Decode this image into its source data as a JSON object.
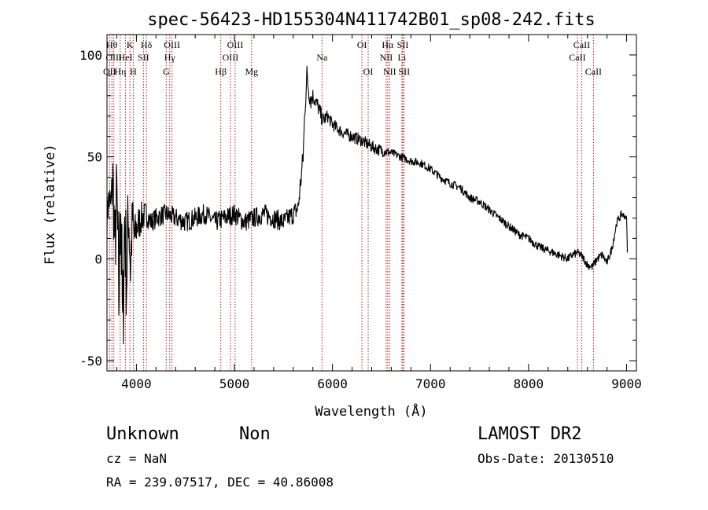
{
  "chart_data": {
    "type": "line",
    "title": "spec-56423-HD155304N411742B01_sp08-242.fits",
    "xlabel": "Wavelength (Å)",
    "ylabel": "Flux (relative)",
    "xlim": [
      3700,
      9100
    ],
    "ylim": [
      -55,
      110
    ],
    "xticks": [
      4000,
      5000,
      6000,
      7000,
      8000,
      9000
    ],
    "yticks": [
      -50,
      0,
      50,
      100
    ],
    "grid": false,
    "line_color": "#000000",
    "marker_color": "#b22222",
    "anchors": {
      "x": [
        3700,
        3720,
        3740,
        3760,
        3780,
        3800,
        3820,
        3840,
        3860,
        3880,
        3900,
        3920,
        3940,
        3960,
        3980,
        4000,
        4050,
        4100,
        4150,
        4200,
        4300,
        4400,
        4500,
        4600,
        4700,
        4800,
        4900,
        5000,
        5100,
        5200,
        5300,
        5400,
        5500,
        5600,
        5650,
        5700,
        5720,
        5740,
        5760,
        5780,
        5800,
        5850,
        5900,
        5950,
        6000,
        6100,
        6200,
        6300,
        6400,
        6500,
        6600,
        6700,
        6800,
        6900,
        7000,
        7100,
        7200,
        7300,
        7400,
        7500,
        7600,
        7700,
        7800,
        7900,
        8000,
        8100,
        8200,
        8300,
        8400,
        8450,
        8500,
        8550,
        8600,
        8650,
        8700,
        8750,
        8800,
        8850,
        8900,
        8950,
        9000,
        9010
      ],
      "y": [
        20,
        30,
        25,
        40,
        5,
        30,
        -20,
        35,
        -40,
        20,
        -10,
        25,
        -5,
        20,
        10,
        15,
        20,
        22,
        18,
        20,
        22,
        20,
        18,
        20,
        22,
        18,
        20,
        22,
        18,
        20,
        22,
        20,
        18,
        22,
        25,
        50,
        75,
        90,
        82,
        78,
        80,
        75,
        68,
        70,
        66,
        62,
        60,
        58,
        55,
        53,
        52,
        50,
        48,
        47,
        44,
        40,
        37,
        35,
        30,
        28,
        24,
        20,
        16,
        12,
        10,
        6,
        4,
        2,
        0,
        2,
        3,
        1,
        -3,
        -4,
        0,
        2,
        -2,
        5,
        18,
        22,
        20,
        0
      ],
      "noise_amplitude": [
        8,
        10,
        12,
        16,
        22,
        26,
        30,
        32,
        30,
        28,
        26,
        22,
        18,
        14,
        12,
        10,
        8,
        6,
        5,
        5,
        5,
        5,
        5,
        5,
        5,
        5,
        5,
        5,
        5,
        5,
        5,
        5,
        5,
        5,
        5,
        6,
        6,
        6,
        5,
        5,
        4,
        4,
        4,
        3,
        3,
        3,
        3,
        3,
        3,
        3,
        2,
        2,
        2,
        2,
        2,
        2,
        2,
        2,
        2,
        2,
        2,
        2,
        2,
        2,
        2,
        2,
        2,
        2,
        2,
        2,
        2,
        2,
        2,
        2,
        2,
        2,
        2,
        2,
        2,
        2,
        1,
        1
      ]
    },
    "lines": [
      {
        "label": "OII",
        "x": 3727,
        "row": 3
      },
      {
        "label": "Hθ",
        "x": 3750,
        "row": 1
      },
      {
        "label": "OIII",
        "x": 3770,
        "row": 2
      },
      {
        "label": "Hη",
        "x": 3835,
        "row": 3
      },
      {
        "label": "HeI",
        "x": 3889,
        "row": 2
      },
      {
        "label": "K",
        "x": 3934,
        "row": 1
      },
      {
        "label": "H",
        "x": 3968,
        "row": 3
      },
      {
        "label": "SII",
        "x": 4072,
        "row": 2
      },
      {
        "label": "Hδ",
        "x": 4102,
        "row": 1
      },
      {
        "label": "G",
        "x": 4304,
        "row": 3
      },
      {
        "label": "Hγ",
        "x": 4340,
        "row": 2
      },
      {
        "label": "OIII",
        "x": 4363,
        "row": 1
      },
      {
        "label": "Hβ",
        "x": 4861,
        "row": 3
      },
      {
        "label": "OIII",
        "x": 4959,
        "row": 2
      },
      {
        "label": "OIII",
        "x": 5007,
        "row": 1
      },
      {
        "label": "Mg",
        "x": 5175,
        "row": 3
      },
      {
        "label": "Na",
        "x": 5893,
        "row": 2
      },
      {
        "label": "OI",
        "x": 6300,
        "row": 1
      },
      {
        "label": "OI",
        "x": 6364,
        "row": 3
      },
      {
        "label": "NII",
        "x": 6548,
        "row": 2
      },
      {
        "label": "Hα",
        "x": 6563,
        "row": 1
      },
      {
        "label": "NII",
        "x": 6583,
        "row": 3
      },
      {
        "label": "Li",
        "x": 6708,
        "row": 2
      },
      {
        "label": "SII",
        "x": 6717,
        "row": 1
      },
      {
        "label": "SII",
        "x": 6731,
        "row": 3
      },
      {
        "label": "CaII",
        "x": 8498,
        "row": 2
      },
      {
        "label": "CaII",
        "x": 8542,
        "row": 1
      },
      {
        "label": "CaII",
        "x": 8662,
        "row": 3
      }
    ]
  },
  "footer": {
    "class_label": "Unknown",
    "subclass_label": "Non",
    "cz_text": "cz = NaN",
    "coords_text": "RA = 239.07517, DEC =  40.86008",
    "survey": "LAMOST DR2",
    "obs_date": "Obs-Date: 20130510"
  }
}
